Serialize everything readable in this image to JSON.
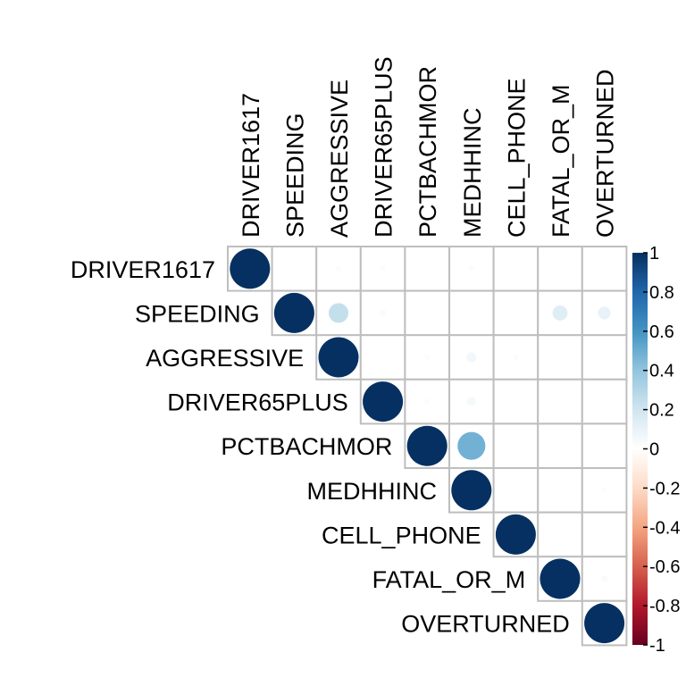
{
  "chart_data": {
    "type": "heatmap",
    "subtype": "correlation-matrix-upper-circles",
    "variables": [
      "DRIVER1617",
      "SPEEDING",
      "AGGRESSIVE",
      "DRIVER65PLUS",
      "PCTBACHMOR",
      "MEDHHINC",
      "CELL_PHONE",
      "FATAL_OR_M",
      "OVERTURNED"
    ],
    "matrix": [
      [
        1.0,
        0.01,
        0.02,
        0.02,
        0.0,
        0.02,
        0.0,
        0.0,
        0.0
      ],
      [
        null,
        1.0,
        0.24,
        -0.03,
        0.0,
        0.01,
        0.0,
        0.14,
        0.1
      ],
      [
        null,
        null,
        1.0,
        0.01,
        0.02,
        0.06,
        0.02,
        0.01,
        0.01
      ],
      [
        null,
        null,
        null,
        1.0,
        0.02,
        0.05,
        0.0,
        0.01,
        0.01
      ],
      [
        null,
        null,
        null,
        null,
        1.0,
        0.48,
        0.0,
        0.01,
        0.01
      ],
      [
        null,
        null,
        null,
        null,
        null,
        1.0,
        0.0,
        0.01,
        0.02
      ],
      [
        null,
        null,
        null,
        null,
        null,
        null,
        1.0,
        0.0,
        0.0
      ],
      [
        null,
        null,
        null,
        null,
        null,
        null,
        null,
        1.0,
        0.03
      ],
      [
        null,
        null,
        null,
        null,
        null,
        null,
        null,
        null,
        1.0
      ]
    ],
    "colorbar": {
      "ticks": [
        "1",
        "0.8",
        "0.6",
        "0.4",
        "0.2",
        "0",
        "-0.2",
        "-0.4",
        "-0.6",
        "-0.8",
        "-1"
      ],
      "range": [
        -1,
        1
      ],
      "colors": [
        "#67001F",
        "#B2182B",
        "#D6604D",
        "#F4A582",
        "#FDDBC7",
        "#FFFFFF",
        "#D1E5F0",
        "#92C5DE",
        "#4393C3",
        "#2166AC",
        "#053061"
      ]
    },
    "grid_color": "#BEBEBE"
  }
}
